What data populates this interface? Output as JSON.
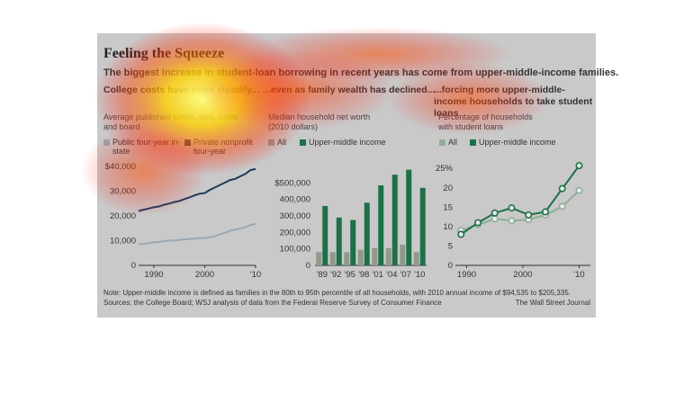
{
  "title": "Feeling the Squeeze",
  "subtitle": "The biggest increase in student-loan borrowing in recent years has come from upper-middle-income families.",
  "colors": {
    "dark_green": "#1e7048",
    "light_green": "#8fad95",
    "navy": "#1f3a5c",
    "grey_blue": "#9aa7b2",
    "grey_bar": "#8f9a8c",
    "bg": "#c9c9c9"
  },
  "panels": {
    "tuition": {
      "heading": "College costs have risen steadily...",
      "sublabel": "Average published tuition, fees, room and board",
      "legend": [
        "Public four-year in-state",
        "Private nonprofit four-year"
      ]
    },
    "networth": {
      "heading": "...even as family wealth has declined...",
      "sublabel": "Median household net worth (2010 dollars)",
      "legend": [
        "All",
        "Upper-middle income"
      ]
    },
    "loans": {
      "heading": "...forcing more upper-middle-income households to take student loans",
      "sublabel": "Percentage of households with student loans",
      "legend": [
        "All",
        "Upper-middle income"
      ]
    }
  },
  "note": "Note: Upper-middle income is defined as families in the 80th to 95th percentile of all households, with 2010 annual income of $94,535 to $205,335.",
  "sources": "Sources: the College Board; WSJ analysis of data from the Federal Reserve Survey of Consumer Finance",
  "credit": "The Wall Street Journal",
  "chart_data": [
    {
      "type": "line",
      "x": [
        1987,
        1988,
        1989,
        1990,
        1991,
        1992,
        1993,
        1994,
        1995,
        1996,
        1997,
        1998,
        1999,
        2000,
        2001,
        2002,
        2003,
        2004,
        2005,
        2006,
        2007,
        2008,
        2009,
        2010
      ],
      "series": [
        {
          "name": "Private nonprofit four-year",
          "values": [
            22000,
            22500,
            23000,
            23500,
            23800,
            24500,
            25000,
            25600,
            26000,
            26800,
            27500,
            28300,
            29000,
            29200,
            30500,
            31500,
            32500,
            33500,
            34500,
            35000,
            36000,
            37000,
            38500,
            39000
          ]
        },
        {
          "name": "Public four-year in-state",
          "values": [
            8500,
            8700,
            9000,
            9300,
            9500,
            9800,
            10000,
            10100,
            10300,
            10500,
            10700,
            10800,
            11000,
            11000,
            11300,
            11800,
            12500,
            13200,
            14000,
            14500,
            15000,
            15400,
            16300,
            16800
          ]
        }
      ],
      "xticks": [
        "1990",
        "2000",
        "'10"
      ],
      "yticks": [
        "$40,000",
        "30,000",
        "20,000",
        "10,000",
        "0"
      ],
      "ylim": [
        0,
        40000
      ]
    },
    {
      "type": "bar",
      "categories": [
        "'89",
        "'92",
        "'95",
        "'98",
        "'01",
        "'04",
        "'07",
        "'10"
      ],
      "series": [
        {
          "name": "All",
          "values": [
            80000,
            80000,
            80000,
            95000,
            105000,
            105000,
            125000,
            80000
          ]
        },
        {
          "name": "Upper-middle income",
          "values": [
            360000,
            290000,
            275000,
            380000,
            485000,
            550000,
            580000,
            470000
          ]
        }
      ],
      "yticks": [
        "$500,000",
        "400,000",
        "300,000",
        "200,000",
        "100,000",
        "0"
      ],
      "ylim": [
        0,
        600000
      ]
    },
    {
      "type": "line",
      "x": [
        1989,
        1992,
        1995,
        1998,
        2001,
        2004,
        2007,
        2010
      ],
      "series": [
        {
          "name": "All",
          "values": [
            9,
            10.5,
            12,
            11.5,
            11.8,
            13,
            15.2,
            19.3
          ]
        },
        {
          "name": "Upper-middle income",
          "values": [
            8,
            11,
            13.5,
            14.8,
            13,
            13.8,
            19.8,
            25.7
          ]
        }
      ],
      "xticks": [
        "1990",
        "2000",
        "'10"
      ],
      "yticks": [
        "25%",
        "20",
        "15",
        "10",
        "5",
        "0"
      ],
      "ylim": [
        0,
        25
      ]
    }
  ]
}
